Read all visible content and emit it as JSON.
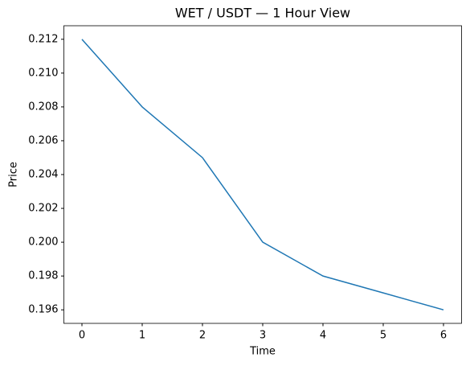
{
  "chart_data": {
    "type": "line",
    "title": "WET / USDT — 1 Hour View",
    "x_label": "Time",
    "y_label": "Price",
    "x": [
      0,
      1,
      2,
      3,
      4,
      5,
      6
    ],
    "series": [
      {
        "name": "WET / USDT",
        "color": "#1f77b4",
        "values": [
          0.212,
          0.208,
          0.205,
          0.2,
          0.198,
          0.197,
          0.196
        ]
      }
    ],
    "xlim": [
      -0.3,
      6.3
    ],
    "xticks": [
      0,
      1,
      2,
      3,
      4,
      5,
      6
    ],
    "ylim": [
      0.1952,
      0.2128
    ],
    "yticks": [
      0.196,
      0.198,
      {
        "value": 0.2,
        "label": "0.200"
      },
      0.202,
      0.204,
      0.206,
      0.208,
      {
        "value": 0.21,
        "label": "0.210"
      },
      0.212
    ],
    "grid": false,
    "legend": false
  }
}
